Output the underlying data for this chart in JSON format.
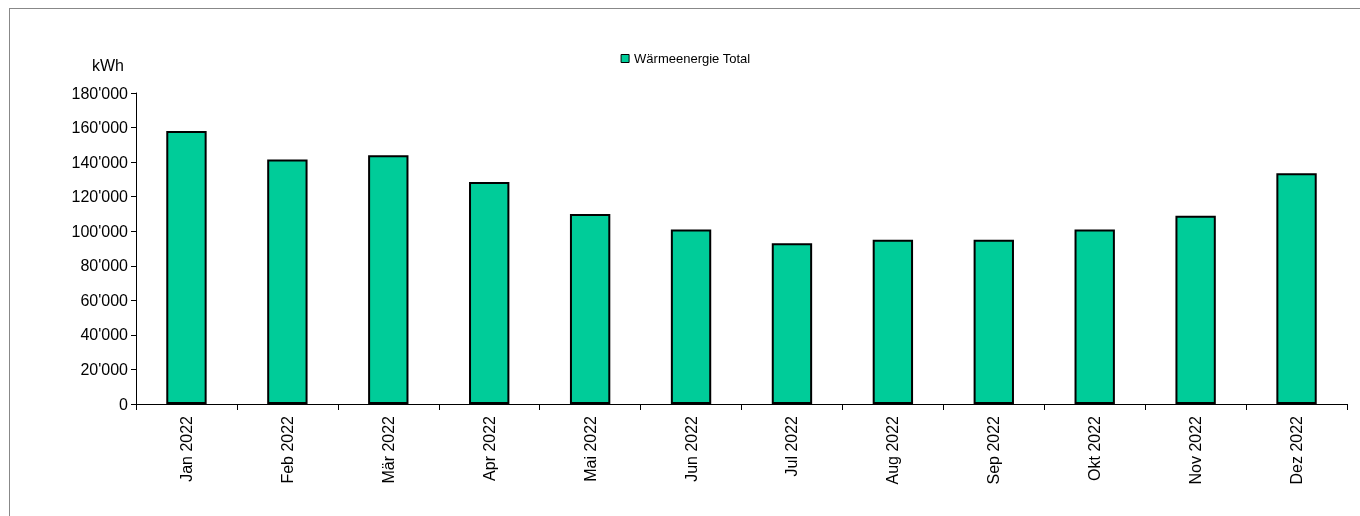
{
  "chart_data": {
    "type": "bar",
    "ylabel": "kWh",
    "categories": [
      "Jan 2022",
      "Feb 2022",
      "Mär 2022",
      "Apr 2022",
      "Mai 2022",
      "Jun 2022",
      "Jul 2022",
      "Aug 2022",
      "Sep 2022",
      "Okt 2022",
      "Nov 2022",
      "Dez 2022"
    ],
    "series": [
      {
        "name": "Wärmeenergie Total",
        "color": "#00cc99",
        "values": [
          158000,
          141500,
          144000,
          128500,
          110000,
          101000,
          93000,
          95000,
          95000,
          101000,
          109000,
          133500
        ]
      }
    ],
    "ylim": [
      0,
      180000
    ],
    "yticks": [
      {
        "value": 0,
        "label": "0"
      },
      {
        "value": 20000,
        "label": "20'000"
      },
      {
        "value": 40000,
        "label": "40'000"
      },
      {
        "value": 60000,
        "label": "60'000"
      },
      {
        "value": 80000,
        "label": "80'000"
      },
      {
        "value": 100000,
        "label": "100'000"
      },
      {
        "value": 120000,
        "label": "120'000"
      },
      {
        "value": 140000,
        "label": "140'000"
      },
      {
        "value": 160000,
        "label": "160'000"
      },
      {
        "value": 180000,
        "label": "180'000"
      }
    ],
    "grid": false,
    "legend": "top"
  }
}
